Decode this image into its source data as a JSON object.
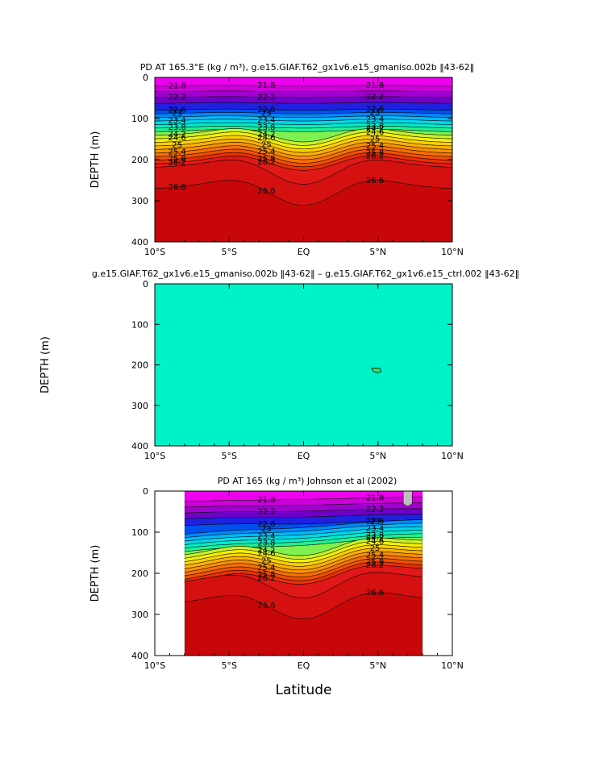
{
  "chart_data": [
    {
      "type": "contour",
      "title": "PD AT 165.3°E (kg / m³), g.e15.GIAF.T62_gx1v6.e15_gmaniso.002b ‖43-62‖",
      "ylabel": "DEPTH (m)",
      "xlabel": "",
      "xlim": [
        -10,
        10
      ],
      "ylim": [
        0,
        400
      ],
      "x_ticks": [
        -10,
        -5,
        0,
        5,
        10
      ],
      "x_tick_labels": [
        "10°S",
        "5°S",
        "EQ",
        "5°N",
        "10°N"
      ],
      "y_ticks": [
        0,
        100,
        200,
        300,
        400
      ],
      "y_tick_labels": [
        "0",
        "100",
        "200",
        "300",
        "400"
      ],
      "contour_levels": [
        21.8,
        22.2,
        22.6,
        23,
        23.4,
        23.8,
        24.2,
        24.6,
        25,
        25.4,
        25.8,
        26.2,
        26.6
      ],
      "contour_labels": [
        "21.8",
        "22.2",
        "22.6",
        "23",
        "23.4",
        "23.8",
        "24.2",
        "24.6",
        "25",
        "25.4",
        "25.8",
        "26.2",
        "26.6"
      ]
    },
    {
      "type": "contour",
      "title": "g.e15.GIAF.T62_gx1v6.e15_gmaniso.002b ‖43-62‖ – g.e15.GIAF.T62_gx1v6.e15_ctrl.002 ‖43-62‖",
      "ylabel": "DEPTH (m)",
      "xlabel": "",
      "xlim": [
        -10,
        10
      ],
      "ylim": [
        0,
        400
      ],
      "x_ticks": [
        -10,
        -5,
        0,
        5,
        10
      ],
      "x_tick_labels": [
        "10°S",
        "5°S",
        "EQ",
        "5°N",
        "10°N"
      ],
      "y_ticks": [
        0,
        100,
        200,
        300,
        400
      ],
      "y_tick_labels": [
        "0",
        "100",
        "200",
        "300",
        "400"
      ],
      "fill_color": "#00f2c8",
      "small_patch": {
        "lat": 4.9,
        "depth": 212,
        "color": "#30e060"
      }
    },
    {
      "type": "contour",
      "title": "PD AT 165 (kg / m³) Johnson et al (2002)",
      "ylabel": "DEPTH (m)",
      "xlabel": "Latitude",
      "xlim": [
        -10,
        10
      ],
      "ylim": [
        0,
        400
      ],
      "data_lat_range": [
        -8,
        8
      ],
      "x_ticks": [
        -10,
        -5,
        0,
        5,
        10
      ],
      "x_tick_labels": [
        "10°S",
        "5°S",
        "EQ",
        "5°N",
        "10°N"
      ],
      "y_ticks": [
        0,
        100,
        200,
        300,
        400
      ],
      "y_tick_labels": [
        "0",
        "100",
        "200",
        "300",
        "400"
      ],
      "contour_levels": [
        21.8,
        22.2,
        22.6,
        23,
        23.4,
        23.8,
        24.2,
        24.6,
        25,
        25.4,
        25.8,
        26.2,
        26.6
      ],
      "contour_labels": [
        "21.8",
        "22.2",
        "22.6",
        "23",
        "23.4",
        "23.8",
        "24.2",
        "24.6",
        "25",
        "25.4",
        "25.8",
        "26.2",
        "26.6"
      ],
      "missing_color": "#bebebe"
    }
  ]
}
